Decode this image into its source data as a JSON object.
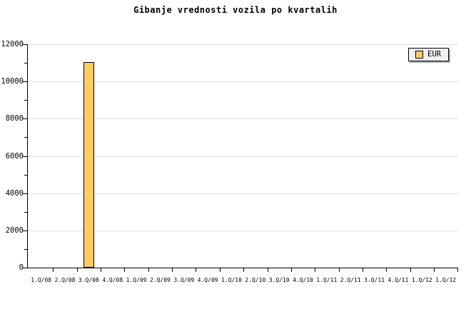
{
  "window": {
    "background": "#FFFFFF"
  },
  "chart_data": {
    "type": "bar",
    "title": "Gibanje vrednosti vozila po kvartalih",
    "xlabel": "",
    "ylabel": "",
    "categories": [
      "1.Q/08",
      "2.Q/08",
      "3.Q/08",
      "4.Q/08",
      "1.Q/09",
      "2.Q/09",
      "3.Q/09",
      "4.Q/09",
      "1.Q/10",
      "2.Q/10",
      "3.Q/10",
      "4.Q/10",
      "1.Q/11",
      "2.Q/11",
      "3.Q/11",
      "4.Q/11",
      "1.Q/12",
      "1.Q/12"
    ],
    "series": [
      {
        "name": "EUR",
        "color": "#FFCC66",
        "values": [
          null,
          null,
          11040,
          null,
          null,
          null,
          null,
          null,
          null,
          null,
          null,
          null,
          null,
          null,
          null,
          null,
          null,
          null
        ]
      }
    ],
    "ylim": [
      0,
      12000
    ],
    "y_tick_labels": [
      "0",
      "2000",
      "4000",
      "6000",
      "8000",
      "10000",
      "12000"
    ],
    "y_major_step": 2000,
    "y_minor_step": 1000,
    "grid": "horizontal",
    "gridline_color": "#DEDEDE",
    "bar_border_color": "#000000",
    "axis_color": "#000000",
    "legend_position": "top-right"
  },
  "legend": {
    "items": [
      {
        "label": "EUR",
        "swatch_color": "#FFCC66"
      }
    ]
  }
}
